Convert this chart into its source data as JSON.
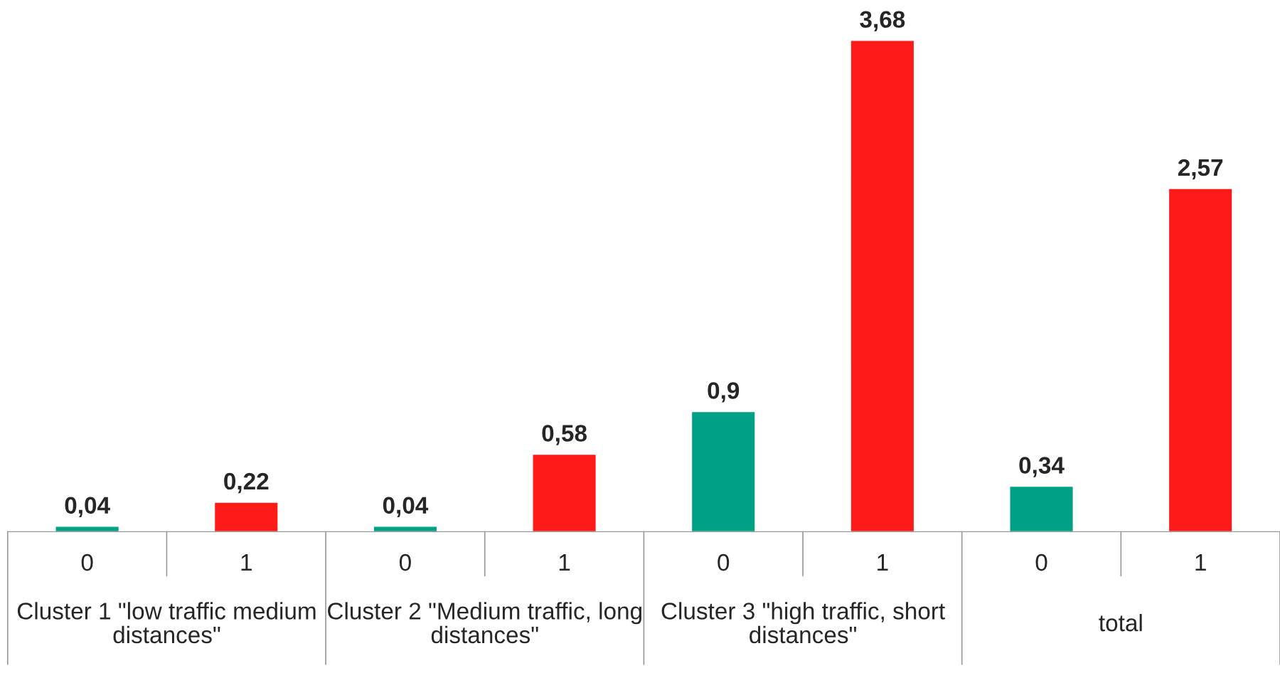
{
  "chart_data": {
    "type": "bar",
    "categories": [
      "0",
      "1",
      "0",
      "1",
      "0",
      "1",
      "0",
      "1"
    ],
    "values": [
      0.04,
      0.22,
      0.04,
      0.58,
      0.9,
      3.68,
      0.34,
      2.57
    ],
    "colors": [
      "#00a084",
      "#ff1a1a",
      "#00a084",
      "#ff1a1a",
      "#00a084",
      "#ff1a1a",
      "#00a084",
      "#ff1a1a"
    ],
    "value_labels": [
      "0,04",
      "0,22",
      "0,04",
      "0,58",
      "0,9",
      "3,68",
      "0,34",
      "2,57"
    ],
    "annotations": [
      "Cluster 1 \"low traffic medium distances\"",
      "Cluster 2 \"Medium traffic, long distances\"",
      "Cluster 3 \"high traffic, short distances\"",
      "total"
    ],
    "grid": false,
    "legend": false
  }
}
